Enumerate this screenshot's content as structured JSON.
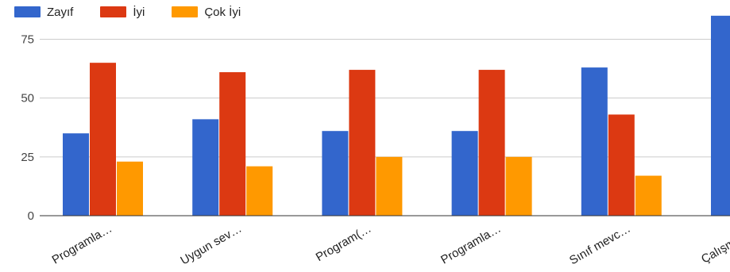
{
  "chart_data": {
    "type": "bar",
    "categories": [
      "Programla…",
      "Uygun sev…",
      "Program(…",
      "Programla…",
      "Sınıf mevc…",
      "Çalışma a…"
    ],
    "series": [
      {
        "name": "Zayıf",
        "color": "#3366cc",
        "values": [
          35,
          41,
          36,
          36,
          63,
          85
        ]
      },
      {
        "name": "İyi",
        "color": "#dc3912",
        "values": [
          65,
          61,
          62,
          62,
          43,
          null
        ]
      },
      {
        "name": "Çok İyi",
        "color": "#ff9900",
        "values": [
          23,
          21,
          25,
          25,
          17,
          null
        ]
      }
    ],
    "yticks": [
      0,
      25,
      50,
      75
    ],
    "ylim": [
      0,
      90
    ],
    "grid": true,
    "legend_position": "top-left"
  }
}
